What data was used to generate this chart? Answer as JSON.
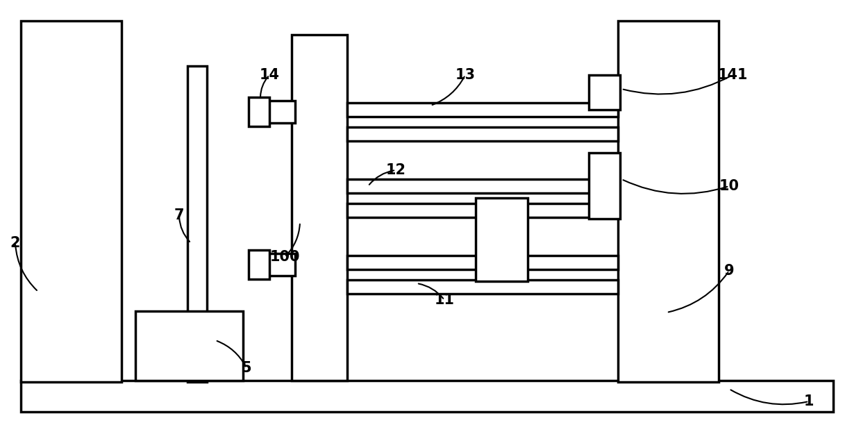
{
  "bg_color": "#ffffff",
  "line_color": "#000000",
  "lw": 2.5,
  "fig_width": 12.4,
  "fig_height": 6.12,
  "font_size": 15
}
